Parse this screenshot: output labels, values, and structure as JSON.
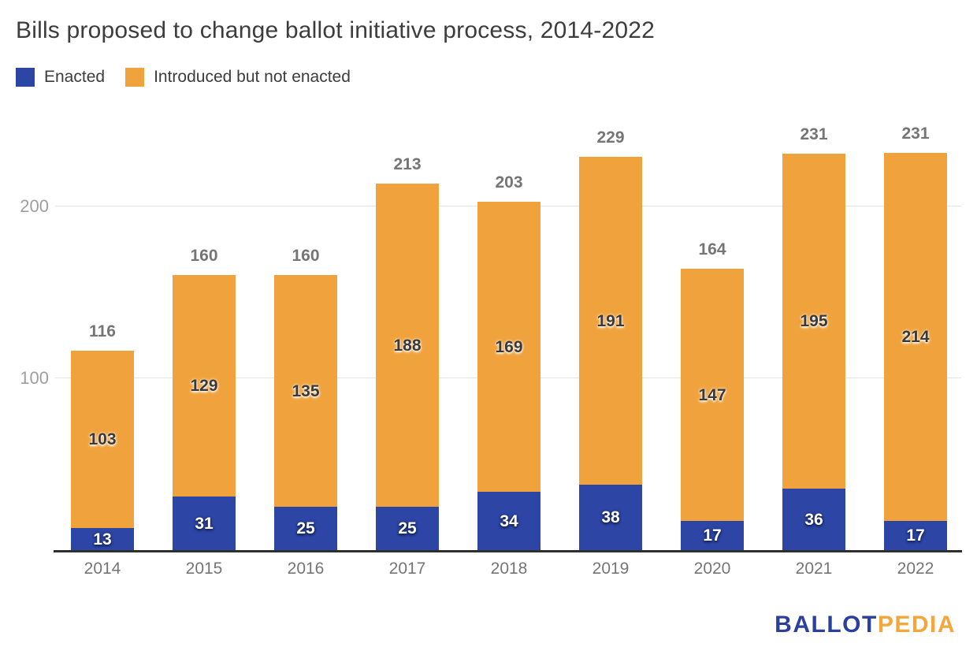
{
  "title": "Bills proposed to change ballot initiative process, 2014-2022",
  "chart_data": {
    "type": "bar",
    "stacked": true,
    "title": "Bills proposed to change ballot initiative process, 2014-2022",
    "categories": [
      "2014",
      "2015",
      "2016",
      "2017",
      "2018",
      "2019",
      "2020",
      "2021",
      "2022"
    ],
    "series": [
      {
        "name": "Enacted",
        "color": "#2d46a5",
        "values": [
          13,
          31,
          25,
          25,
          34,
          38,
          17,
          36,
          17
        ]
      },
      {
        "name": "Introduced but not enacted",
        "color": "#f0a33d",
        "values": [
          103,
          129,
          135,
          188,
          169,
          191,
          147,
          195,
          214
        ]
      }
    ],
    "totals": [
      116,
      160,
      160,
      213,
      203,
      229,
      164,
      231,
      231
    ],
    "xlabel": "",
    "ylabel": "",
    "y_ticks": [
      100,
      200
    ],
    "ylim": [
      0,
      255
    ],
    "grid": true,
    "legend_position": "top-left",
    "gridline_color": "#e4e4e4",
    "axis_line_color": "#2f2f2f",
    "total_label_color": "#757575",
    "ytick_label_color": "#9e9e9e"
  },
  "logo": {
    "part1": "BALLOT",
    "part2": "PEDIA",
    "part1_color": "#2b3f9c",
    "part2_color": "#f5a63b"
  }
}
